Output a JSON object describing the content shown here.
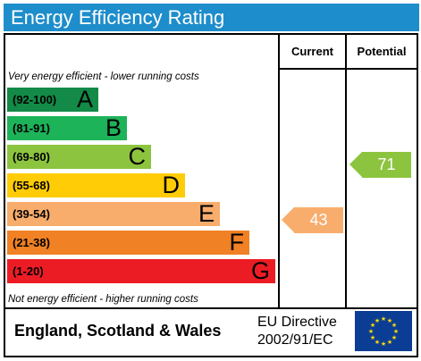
{
  "title": "Energy Efficiency Rating",
  "columns": {
    "current": "Current",
    "potential": "Potential"
  },
  "notes": {
    "top": "Very energy efficient - lower running costs",
    "bottom": "Not energy efficient - higher running costs"
  },
  "bands": [
    {
      "range": "(92-100)",
      "letter": "A",
      "color": "#138a47"
    },
    {
      "range": "(81-91)",
      "letter": "B",
      "color": "#1db359"
    },
    {
      "range": "(69-80)",
      "letter": "C",
      "color": "#8dc43f"
    },
    {
      "range": "(55-68)",
      "letter": "D",
      "color": "#ffcc05"
    },
    {
      "range": "(39-54)",
      "letter": "E",
      "color": "#f8ad6c"
    },
    {
      "range": "(21-38)",
      "letter": "F",
      "color": "#f08124"
    },
    {
      "range": "(1-20)",
      "letter": "G",
      "color": "#ec1c24"
    }
  ],
  "current": {
    "value": "43",
    "color": "#f8ad6c"
  },
  "potential": {
    "value": "71",
    "color": "#8dc43f"
  },
  "footer": {
    "region": "England, Scotland & Wales",
    "directive_line1": "EU Directive",
    "directive_line2": "2002/91/EC"
  },
  "flag": {
    "name": "eu-flag-icon",
    "background": "#0c3d94",
    "star_color": "#ffdd00"
  }
}
